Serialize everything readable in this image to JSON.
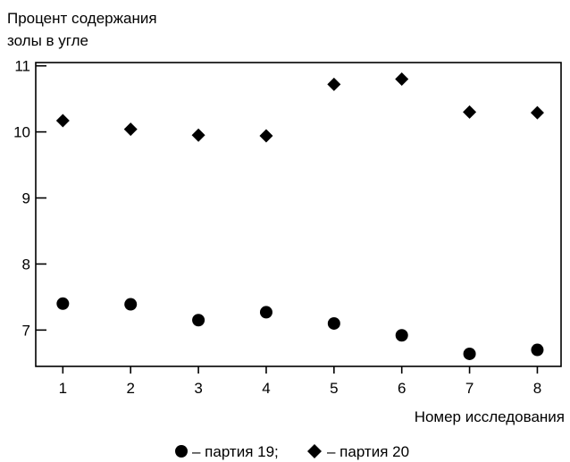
{
  "chart_data": {
    "type": "scatter",
    "title": "",
    "ylabel_lines": [
      "Процент содержания",
      "золы в угле"
    ],
    "xlabel": "Номер исследования",
    "x": [
      1,
      2,
      3,
      4,
      5,
      6,
      7,
      8
    ],
    "xticks": [
      "1",
      "2",
      "3",
      "4",
      "5",
      "6",
      "7",
      "8"
    ],
    "yticks": [
      "7",
      "8",
      "9",
      "10",
      "11"
    ],
    "xlim": [
      0.6,
      8.35
    ],
    "ylim": [
      6.45,
      11.05
    ],
    "grid": false,
    "legend_position": "bottom",
    "series": [
      {
        "name": "партия 19",
        "marker": "circle",
        "color": "#000000",
        "values": [
          7.4,
          7.39,
          7.15,
          7.27,
          7.1,
          6.92,
          6.64,
          6.7
        ]
      },
      {
        "name": "партия 20",
        "marker": "diamond",
        "color": "#000000",
        "values": [
          10.17,
          10.04,
          9.95,
          9.94,
          10.72,
          10.8,
          10.3,
          10.29
        ]
      }
    ],
    "legend_text": {
      "series1": "– партия 19;",
      "series2": "– партия 20"
    }
  }
}
